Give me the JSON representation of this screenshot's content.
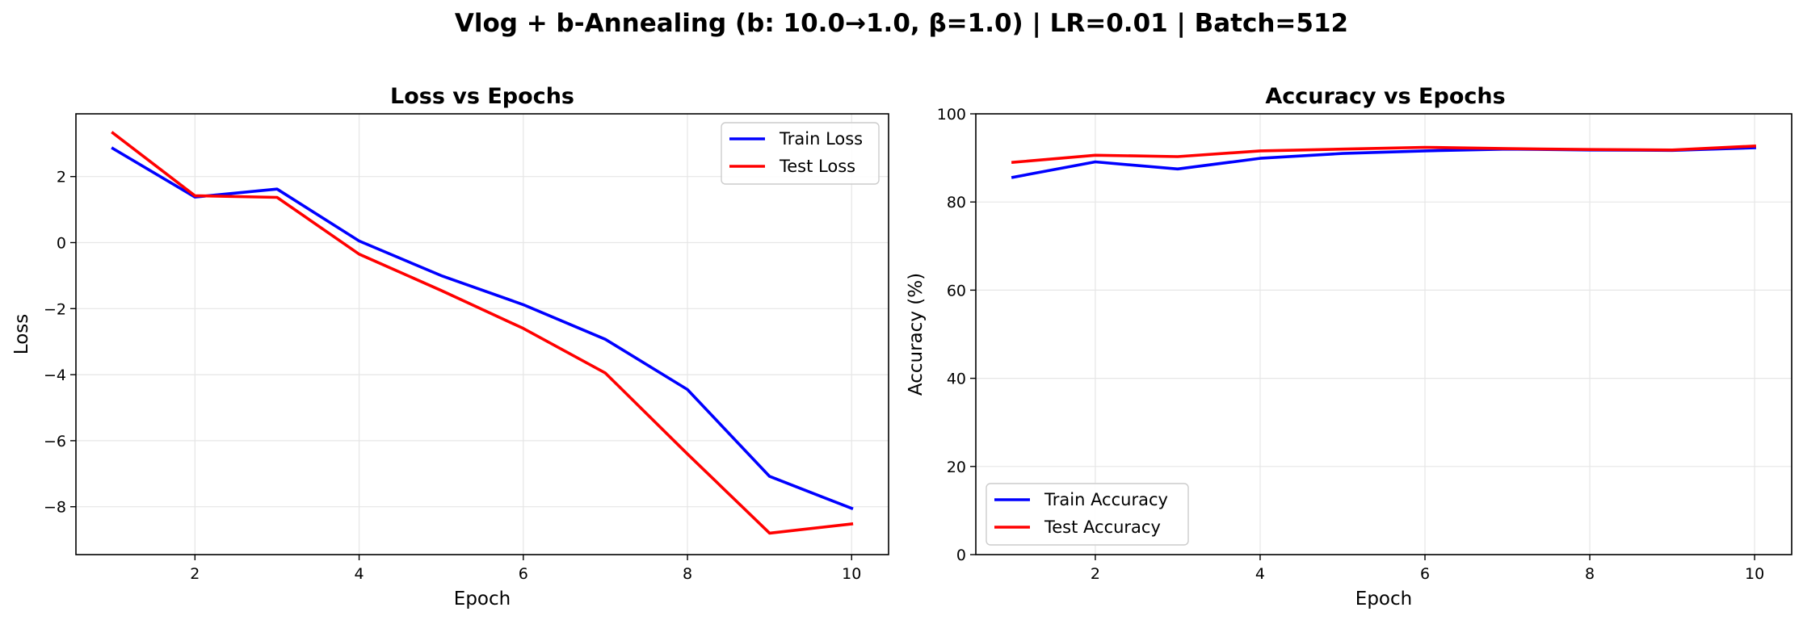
{
  "suptitle": "Vlog + b-Annealing (b: 10.0→1.0, β=1.0) | LR=0.01 | Batch=512",
  "colors": {
    "train": "#0000ff",
    "test": "#ff0000",
    "grid": "#e6e6e6",
    "axis": "#000000"
  },
  "chart_data": [
    {
      "type": "line",
      "title": "Loss vs Epochs",
      "xlabel": "Epoch",
      "ylabel": "Loss",
      "x": [
        1,
        2,
        3,
        4,
        5,
        6,
        7,
        8,
        9,
        10
      ],
      "xlim": [
        0.55,
        10.45
      ],
      "ylim": [
        -9.45,
        3.9
      ],
      "xticks": [
        2,
        4,
        6,
        8,
        10
      ],
      "yticks": [
        -8,
        -6,
        -4,
        -2,
        0,
        2
      ],
      "grid": true,
      "legend": "upper right",
      "series": [
        {
          "name": "Train Loss",
          "color": "#0000ff",
          "values": [
            2.85,
            1.38,
            1.62,
            0.05,
            -1.0,
            -1.88,
            -2.93,
            -4.45,
            -7.08,
            -8.05
          ]
        },
        {
          "name": "Test Loss",
          "color": "#ff0000",
          "values": [
            3.32,
            1.42,
            1.37,
            -0.35,
            -1.45,
            -2.6,
            -3.95,
            -6.4,
            -8.8,
            -8.52
          ]
        }
      ]
    },
    {
      "type": "line",
      "title": "Accuracy vs Epochs",
      "xlabel": "Epoch",
      "ylabel": "Accuracy (%)",
      "x": [
        1,
        2,
        3,
        4,
        5,
        6,
        7,
        8,
        9,
        10
      ],
      "xlim": [
        0.55,
        10.45
      ],
      "ylim": [
        0,
        100
      ],
      "xticks": [
        2,
        4,
        6,
        8,
        10
      ],
      "yticks": [
        0,
        20,
        40,
        60,
        80,
        100
      ],
      "grid": true,
      "legend": "lower left",
      "series": [
        {
          "name": "Train Accuracy",
          "color": "#0000ff",
          "values": [
            85.6,
            89.1,
            87.5,
            89.9,
            91.0,
            91.6,
            92.0,
            91.8,
            91.7,
            92.3
          ]
        },
        {
          "name": "Test Accuracy",
          "color": "#ff0000",
          "values": [
            89.0,
            90.6,
            90.3,
            91.6,
            92.0,
            92.4,
            92.1,
            91.9,
            91.8,
            92.7
          ]
        }
      ]
    }
  ]
}
